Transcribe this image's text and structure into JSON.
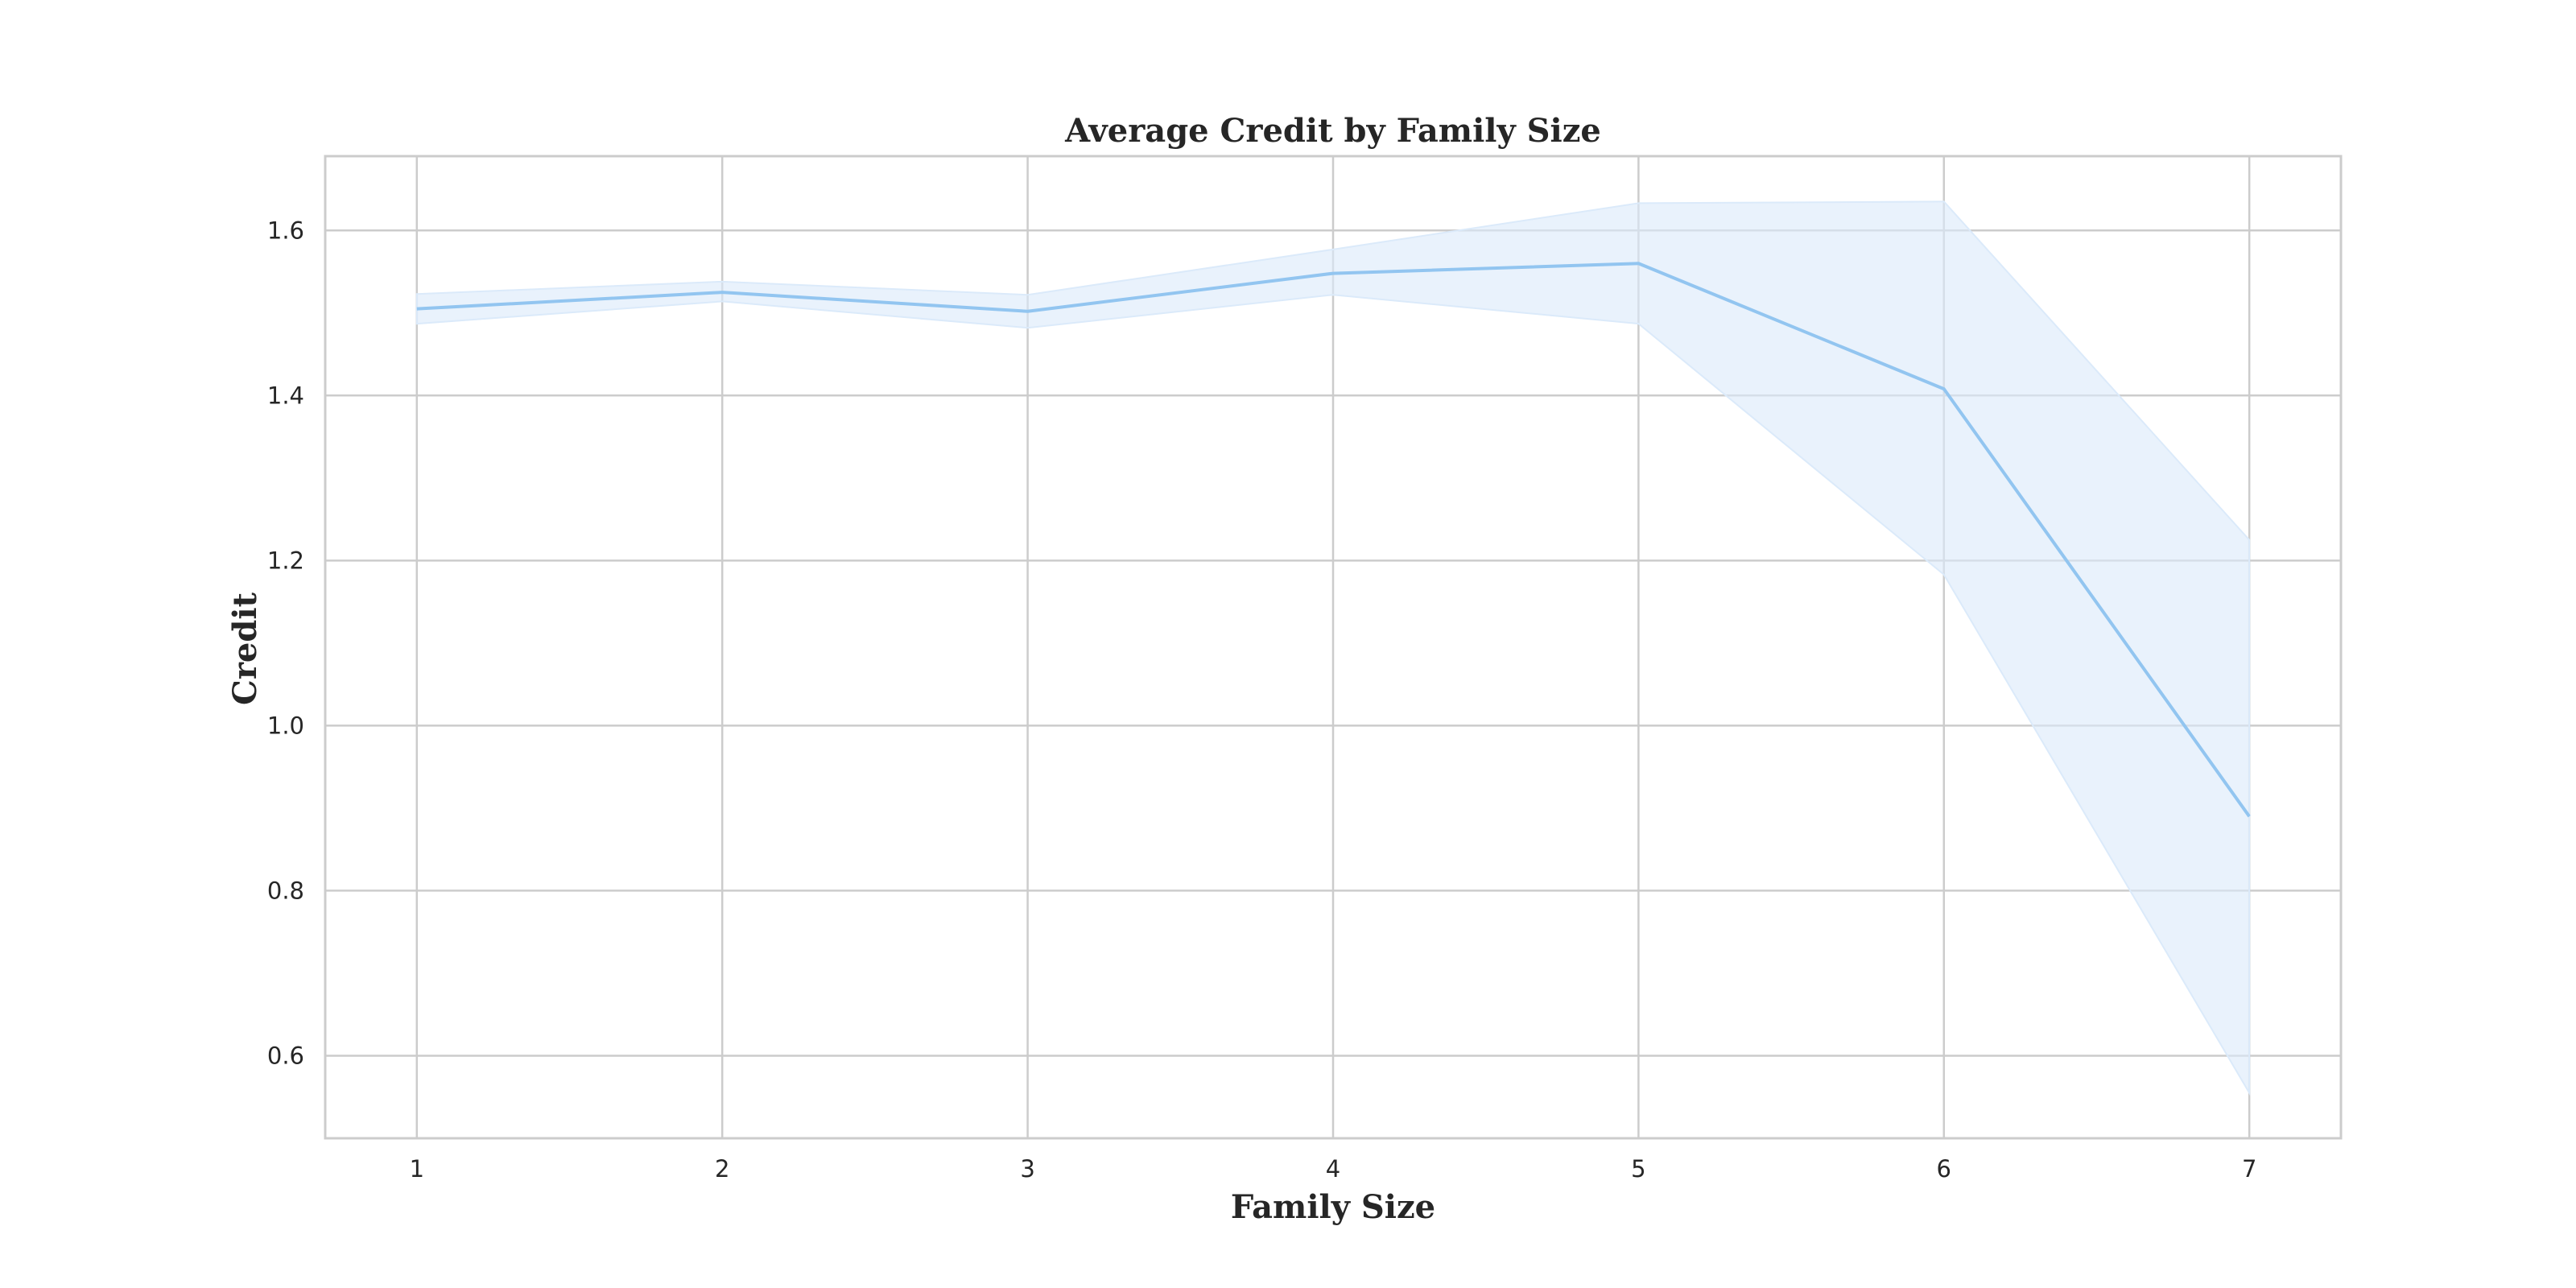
{
  "chart_data": {
    "type": "line",
    "title": "Average Credit by Family Size",
    "xlabel": "Family Size",
    "ylabel": "Credit",
    "x": [
      1,
      2,
      3,
      4,
      5,
      6,
      7
    ],
    "xticks": [
      "1",
      "2",
      "3",
      "4",
      "5",
      "6",
      "7"
    ],
    "yticks": [
      "0.6",
      "0.8",
      "1.0",
      "1.2",
      "1.4",
      "1.6"
    ],
    "xlim": [
      0.7,
      7.3
    ],
    "ylim": [
      0.5,
      1.69
    ],
    "grid": true,
    "series": [
      {
        "values": [
          1.505,
          1.525,
          1.502,
          1.548,
          1.56,
          1.408,
          0.89
        ],
        "ci_lower": [
          1.487,
          1.514,
          1.482,
          1.522,
          1.487,
          1.183,
          0.555
        ],
        "ci_upper": [
          1.523,
          1.538,
          1.522,
          1.577,
          1.633,
          1.635,
          1.225
        ],
        "color": "#92c5f0",
        "band_color": "#dbeafa"
      }
    ]
  }
}
